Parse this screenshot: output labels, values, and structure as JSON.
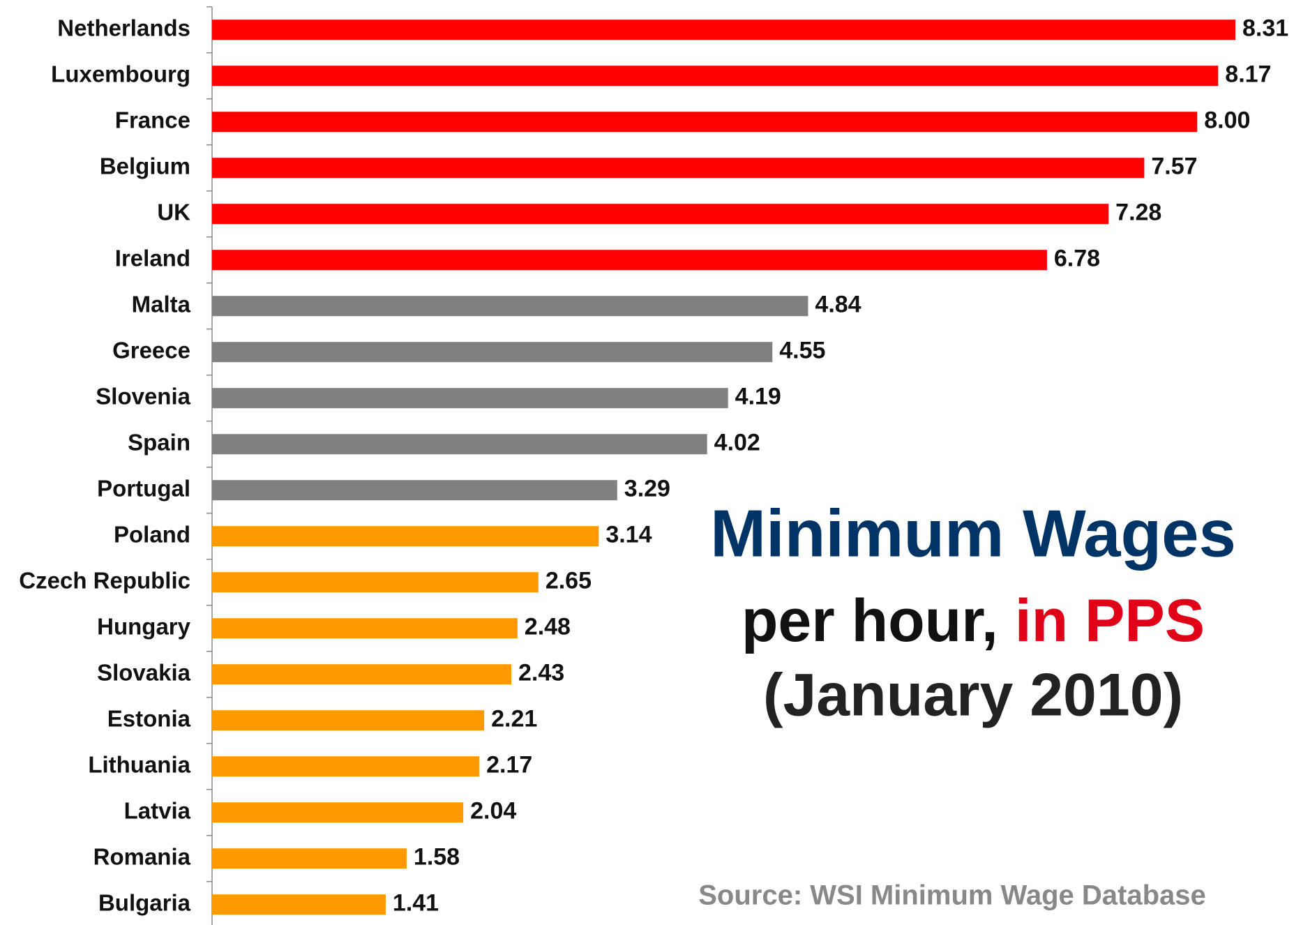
{
  "chart_data": {
    "type": "bar",
    "orientation": "horizontal",
    "title": "Minimum Wages",
    "subtitle": [
      "per hour,",
      "in PPS",
      "(January 2010)"
    ],
    "source": "Source: WSI Minimum Wage Database",
    "categories": [
      "Netherlands",
      "Luxembourg",
      "France",
      "Belgium",
      "UK",
      "Ireland",
      "Malta",
      "Greece",
      "Slovenia",
      "Spain",
      "Portugal",
      "Poland",
      "Czech Republic",
      "Hungary",
      "Slovakia",
      "Estonia",
      "Lithuania",
      "Latvia",
      "Romania",
      "Bulgaria"
    ],
    "values": [
      8.31,
      8.17,
      8.0,
      7.57,
      7.28,
      6.78,
      4.84,
      4.55,
      4.19,
      4.02,
      3.29,
      3.14,
      2.65,
      2.48,
      2.43,
      2.21,
      2.17,
      2.04,
      1.58,
      1.41
    ],
    "value_labels": [
      "8.31",
      "8.17",
      "8.00",
      "7.57",
      "7.28",
      "6.78",
      "4.84",
      "4.55",
      "4.19",
      "4.02",
      "3.29",
      "3.14",
      "2.65",
      "2.48",
      "2.43",
      "2.21",
      "2.17",
      "2.04",
      "1.58",
      "1.41"
    ],
    "colors": [
      "#ff0000",
      "#ff0000",
      "#ff0000",
      "#ff0000",
      "#ff0000",
      "#ff0000",
      "#808080",
      "#808080",
      "#808080",
      "#808080",
      "#808080",
      "#ff9900",
      "#ff9900",
      "#ff9900",
      "#ff9900",
      "#ff9900",
      "#ff9900",
      "#ff9900",
      "#ff9900",
      "#ff9900"
    ]
  }
}
